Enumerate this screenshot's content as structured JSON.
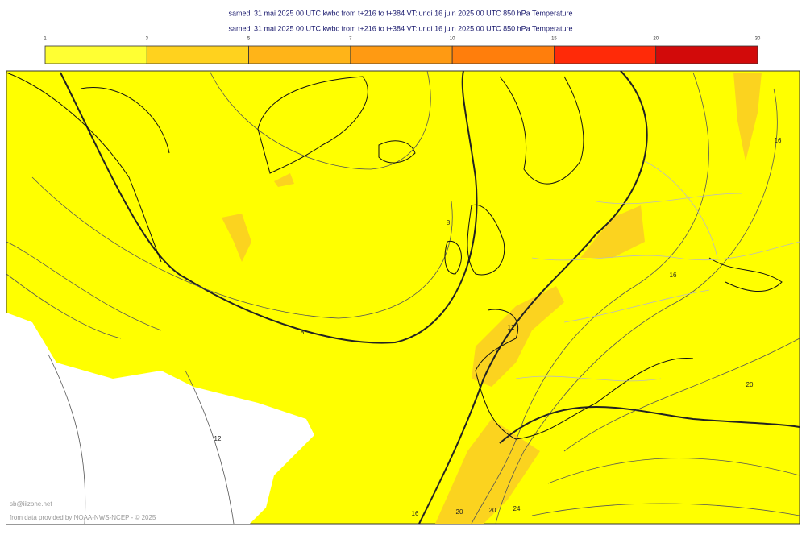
{
  "header": {
    "lines": [
      "samedi 31 mai 2025 00 UTC kwbc from t+216 to t+384 VT:lundi 16 juin 2025 00 UTC 850 hPa  Temperature",
      "samedi 31 mai 2025 00 UTC kwbc from t+216 to t+384 VT:lundi 16 juin 2025 00 UTC 850 hPa  Temperature"
    ]
  },
  "colorbar": {
    "ticks": [
      "1",
      "3",
      "5",
      "7",
      "10",
      "15",
      "20",
      "30"
    ],
    "colors": [
      "#ffff33",
      "#ffd21e",
      "#ffb418",
      "#ff9a12",
      "#ff7e0c",
      "#ff2a08",
      "#d20a0a"
    ]
  },
  "map": {
    "contour_labels": [
      "8",
      "8",
      "12",
      "12",
      "16",
      "16",
      "20",
      "16",
      "20",
      "20",
      "24"
    ]
  },
  "footer": {
    "credit": "sb@iiizone.net",
    "source": "from data provided by NOAA-NWS-NCEP - © 2025"
  }
}
